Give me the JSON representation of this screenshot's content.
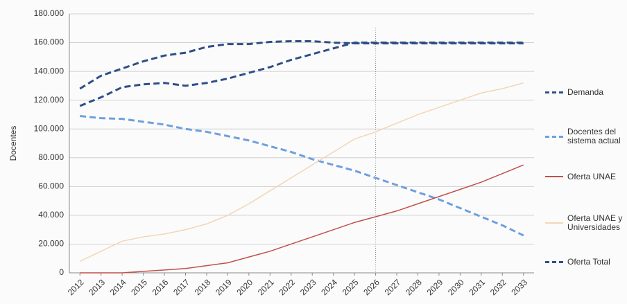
{
  "chart_data": {
    "type": "line",
    "y_label": "Docentes",
    "categories": [
      "2012",
      "2013",
      "2014",
      "2015",
      "2016",
      "2017",
      "2018",
      "2019",
      "2020",
      "2021",
      "2022",
      "2023",
      "2024",
      "2025",
      "2026",
      "2027",
      "2028",
      "2029",
      "2030",
      "2031",
      "2032",
      "2033"
    ],
    "series": [
      {
        "name": "Demanda",
        "color": "#2f4e86",
        "dash": true,
        "values": [
          128000,
          137000,
          142000,
          147000,
          151000,
          153000,
          157000,
          159000,
          159000,
          160500,
          161000,
          161000,
          160000,
          159500,
          159500,
          159500,
          159500,
          159500,
          159500,
          159500,
          159500,
          159500
        ]
      },
      {
        "name": "Docentes del sistema actual",
        "color": "#6f9fdf",
        "dash": true,
        "values": [
          109000,
          107500,
          107000,
          105000,
          103000,
          100000,
          98000,
          95000,
          92000,
          88000,
          84000,
          79000,
          75000,
          71000,
          66000,
          61000,
          56000,
          51000,
          45000,
          39000,
          33000,
          26000
        ]
      },
      {
        "name": "Oferta UNAE",
        "color": "#c0504d",
        "dash": false,
        "values": [
          0,
          0,
          0,
          1000,
          2000,
          3000,
          5000,
          7000,
          11000,
          15000,
          20000,
          25000,
          30000,
          35000,
          39000,
          43000,
          48000,
          53000,
          58000,
          63000,
          69000,
          75000
        ]
      },
      {
        "name": "Oferta UNAE y Universidades",
        "color": "#f2d6b6",
        "dash": false,
        "values": [
          8000,
          15000,
          22000,
          25000,
          27000,
          30000,
          34000,
          40000,
          48000,
          57000,
          66000,
          75000,
          84000,
          93000,
          98000,
          104000,
          110000,
          115000,
          120000,
          125000,
          128000,
          132000
        ]
      },
      {
        "name": "Oferta Total",
        "color": "#2f4e86",
        "dash": true,
        "values": [
          116000,
          122000,
          129000,
          131000,
          132000,
          130000,
          132000,
          135000,
          139000,
          143000,
          148000,
          152000,
          156000,
          160000,
          160000,
          160000,
          160000,
          160000,
          160000,
          160000,
          160000,
          160000
        ]
      }
    ],
    "ylim": [
      0,
      180000
    ],
    "yticks": [
      0,
      {
        "value": 20000,
        "label": "20.000"
      },
      {
        "value": 40000,
        "label": "40.000"
      },
      {
        "value": 60000,
        "label": "60.000"
      },
      {
        "value": 80000,
        "label": "80.000"
      },
      {
        "value": 100000,
        "label": "100.000"
      },
      {
        "value": 120000,
        "label": "120.000"
      },
      {
        "value": 140000,
        "label": "140.000"
      },
      {
        "value": 160000,
        "label": "160.000"
      },
      {
        "value": 180000,
        "label": "180.000"
      }
    ],
    "grid": true,
    "vline_category": "2026"
  }
}
